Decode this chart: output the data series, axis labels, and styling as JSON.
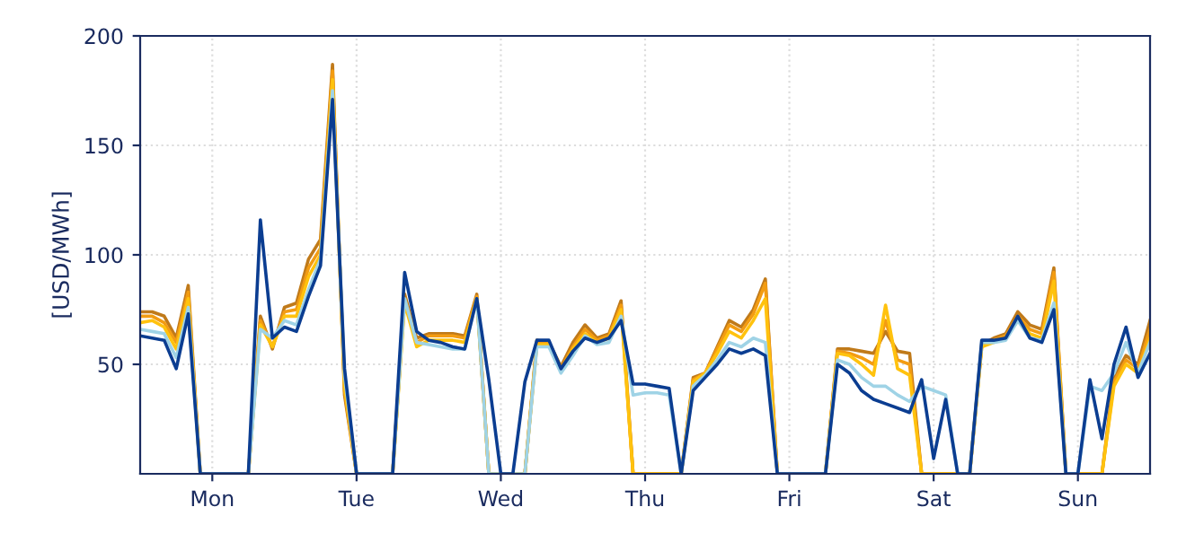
{
  "chart_data": {
    "type": "line",
    "ylabel": "[USD/MWh]",
    "categories": [
      null,
      null,
      null,
      null,
      null,
      null,
      "Mon",
      null,
      null,
      null,
      null,
      null,
      null,
      null,
      null,
      null,
      null,
      null,
      "Tue",
      null,
      null,
      null,
      null,
      null,
      null,
      null,
      null,
      null,
      null,
      null,
      "Wed",
      null,
      null,
      null,
      null,
      null,
      null,
      null,
      null,
      null,
      null,
      null,
      "Thu",
      null,
      null,
      null,
      null,
      null,
      null,
      null,
      null,
      null,
      null,
      null,
      "Fri",
      null,
      null,
      null,
      null,
      null,
      null,
      null,
      null,
      null,
      null,
      null,
      "Sat",
      null,
      null,
      null,
      null,
      null,
      null,
      null,
      null,
      null,
      null,
      null,
      "Sun",
      null,
      null,
      null,
      null,
      null,
      null
    ],
    "series": [
      {
        "color": "#c07a1a",
        "values": [
          74,
          74,
          72,
          62,
          86,
          0,
          0,
          0,
          0,
          0,
          72,
          57,
          76,
          78,
          98,
          107,
          187,
          36,
          0,
          0,
          0,
          0,
          82,
          62,
          64,
          64,
          64,
          63,
          82,
          0,
          0,
          0,
          0,
          61,
          60,
          49,
          60,
          68,
          62,
          64,
          79,
          0,
          0,
          0,
          0,
          0,
          44,
          46,
          58,
          70,
          67,
          75,
          89,
          0,
          0,
          0,
          0,
          0,
          57,
          57,
          56,
          55,
          65,
          56,
          55,
          0,
          0,
          0,
          0,
          0,
          59,
          62,
          64,
          74,
          68,
          66,
          94,
          0,
          0,
          0,
          0,
          44,
          54,
          50,
          70
        ]
      },
      {
        "color": "#f39c12",
        "values": [
          72,
          72,
          69,
          60,
          83,
          0,
          0,
          0,
          0,
          0,
          70,
          58,
          74,
          75,
          94,
          103,
          184,
          38,
          0,
          0,
          0,
          0,
          80,
          60,
          63,
          63,
          63,
          62,
          81,
          0,
          0,
          0,
          0,
          60,
          60,
          48,
          58,
          66,
          61,
          63,
          77,
          0,
          0,
          0,
          0,
          0,
          43,
          46,
          57,
          68,
          65,
          73,
          87,
          0,
          0,
          0,
          0,
          0,
          56,
          55,
          53,
          50,
          70,
          52,
          50,
          0,
          0,
          0,
          0,
          0,
          58,
          61,
          63,
          72,
          66,
          64,
          92,
          0,
          0,
          0,
          0,
          42,
          52,
          48,
          66
        ]
      },
      {
        "color": "#ffc20e",
        "values": [
          69,
          70,
          67,
          57,
          80,
          0,
          0,
          0,
          0,
          0,
          68,
          58,
          72,
          72,
          90,
          100,
          180,
          40,
          0,
          0,
          0,
          0,
          78,
          58,
          61,
          61,
          61,
          60,
          80,
          0,
          0,
          0,
          0,
          59,
          59,
          47,
          57,
          64,
          60,
          62,
          75,
          0,
          0,
          0,
          0,
          0,
          42,
          46,
          55,
          65,
          62,
          70,
          80,
          0,
          0,
          0,
          0,
          0,
          55,
          54,
          50,
          45,
          77,
          48,
          45,
          0,
          0,
          0,
          0,
          0,
          58,
          60,
          62,
          70,
          64,
          62,
          88,
          0,
          0,
          0,
          0,
          40,
          50,
          46,
          62
        ]
      },
      {
        "color": "#9fd3e6",
        "values": [
          66,
          65,
          64,
          53,
          76,
          0,
          0,
          0,
          0,
          0,
          66,
          62,
          70,
          68,
          84,
          98,
          175,
          45,
          0,
          0,
          0,
          0,
          80,
          60,
          59,
          58,
          57,
          57,
          80,
          0,
          0,
          0,
          0,
          58,
          58,
          46,
          54,
          63,
          59,
          60,
          72,
          36,
          37,
          37,
          36,
          0,
          40,
          45,
          52,
          60,
          58,
          62,
          60,
          0,
          0,
          0,
          0,
          0,
          52,
          50,
          44,
          40,
          40,
          36,
          33,
          40,
          38,
          36,
          0,
          0,
          60,
          60,
          61,
          70,
          62,
          61,
          78,
          0,
          0,
          40,
          38,
          46,
          60,
          46,
          60
        ]
      },
      {
        "color": "#0b3d91",
        "values": [
          63,
          62,
          61,
          48,
          73,
          0,
          0,
          0,
          0,
          0,
          116,
          62,
          67,
          65,
          81,
          95,
          171,
          48,
          0,
          0,
          0,
          0,
          92,
          65,
          61,
          60,
          58,
          57,
          80,
          43,
          0,
          0,
          42,
          61,
          61,
          48,
          56,
          62,
          60,
          62,
          70,
          41,
          41,
          40,
          39,
          0,
          38,
          44,
          50,
          57,
          55,
          57,
          54,
          0,
          0,
          0,
          0,
          0,
          50,
          46,
          38,
          34,
          32,
          30,
          28,
          43,
          7,
          34,
          0,
          0,
          61,
          61,
          62,
          72,
          62,
          60,
          75,
          0,
          0,
          43,
          16,
          50,
          67,
          44,
          55
        ]
      }
    ],
    "ylim": [
      0,
      200
    ],
    "yticks": [
      50,
      100,
      150,
      200
    ],
    "grid": true,
    "marker": "none",
    "line_style": "solid"
  }
}
